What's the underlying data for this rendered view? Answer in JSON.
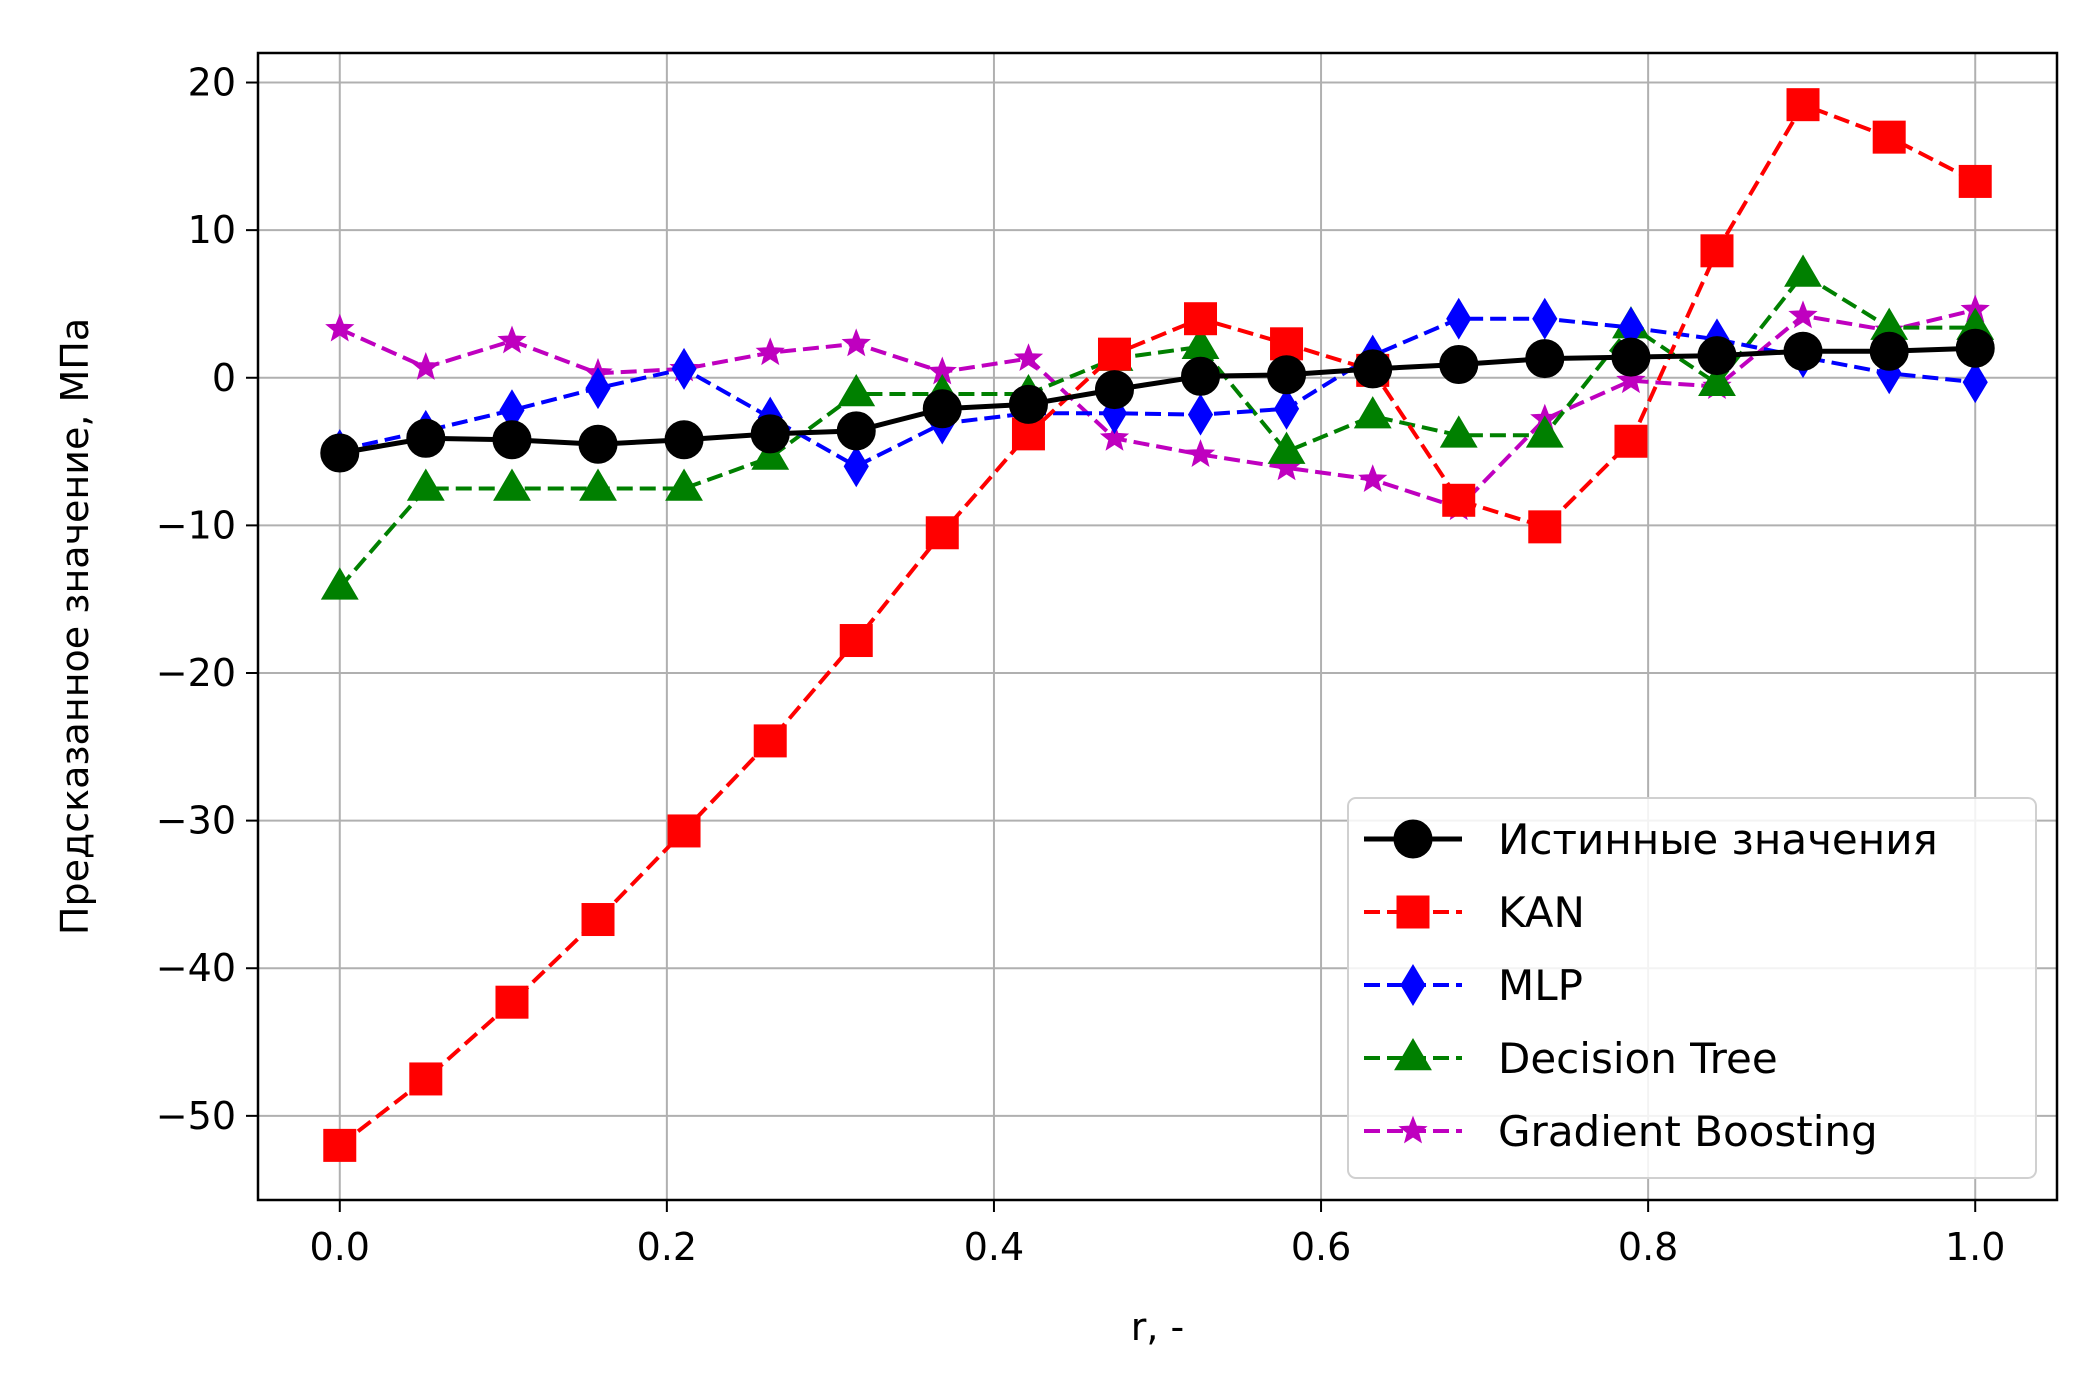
{
  "chart_data": {
    "type": "line",
    "xlabel": "r, -",
    "ylabel": "Предсказанное значение, МПа",
    "xlim": [
      -0.05,
      1.05
    ],
    "ylim": [
      -55.7,
      22
    ],
    "xticks": [
      0.0,
      0.2,
      0.4,
      0.6,
      0.8,
      1.0
    ],
    "xtick_labels": [
      "0.0",
      "0.2",
      "0.4",
      "0.6",
      "0.8",
      "1.0"
    ],
    "yticks": [
      -50,
      -40,
      -30,
      -20,
      -10,
      0,
      10,
      20
    ],
    "ytick_labels": [
      "−50",
      "−40",
      "−30",
      "−20",
      "−10",
      "0",
      "10",
      "20"
    ],
    "grid": true,
    "legend_position": "bottom-right",
    "x": [
      0.0,
      0.0526,
      0.1053,
      0.1579,
      0.2105,
      0.2632,
      0.3158,
      0.3684,
      0.4211,
      0.4737,
      0.5263,
      0.5789,
      0.6316,
      0.6842,
      0.7368,
      0.7895,
      0.8421,
      0.8947,
      0.9474,
      1.0
    ],
    "series": [
      {
        "name": "Истинные значения",
        "color": "#000000",
        "marker": "circle",
        "linestyle": "solid",
        "values": [
          -5.1,
          -4.1,
          -4.2,
          -4.5,
          -4.2,
          -3.8,
          -3.6,
          -2.1,
          -1.8,
          -0.8,
          0.1,
          0.2,
          0.6,
          0.9,
          1.3,
          1.4,
          1.5,
          1.8,
          1.8,
          2.0
        ]
      },
      {
        "name": "KAN",
        "color": "#ff0000",
        "marker": "square",
        "linestyle": "dashed",
        "values": [
          -52.0,
          -47.5,
          -42.3,
          -36.7,
          -30.7,
          -24.6,
          -17.8,
          -10.5,
          -3.8,
          1.6,
          4.0,
          2.3,
          0.5,
          -8.3,
          -10.1,
          -4.3,
          8.6,
          18.5,
          16.3,
          13.3
        ]
      },
      {
        "name": "MLP",
        "color": "#0000ff",
        "marker": "diamond",
        "linestyle": "dashed",
        "values": [
          -4.9,
          -3.6,
          -2.2,
          -0.7,
          0.6,
          -2.7,
          -6.0,
          -3.1,
          -2.4,
          -2.4,
          -2.5,
          -2.1,
          1.5,
          4.0,
          4.0,
          3.4,
          2.6,
          1.4,
          0.3,
          -0.3
        ]
      },
      {
        "name": "Decision Tree",
        "color": "#008000",
        "marker": "triangle",
        "linestyle": "dashed",
        "values": [
          -14.2,
          -7.5,
          -7.5,
          -7.5,
          -7.5,
          -5.4,
          -1.1,
          -1.1,
          -1.1,
          1.3,
          2.1,
          -5.0,
          -2.6,
          -3.9,
          -3.9,
          3.5,
          -0.4,
          7.0,
          3.4,
          3.4
        ]
      },
      {
        "name": "Gradient Boosting",
        "color": "#bf00bf",
        "marker": "star",
        "linestyle": "dashed",
        "values": [
          3.3,
          0.7,
          2.5,
          0.3,
          0.6,
          1.7,
          2.3,
          0.4,
          1.3,
          -4.1,
          -5.2,
          -6.1,
          -6.9,
          -8.8,
          -2.8,
          -0.2,
          -0.6,
          4.2,
          3.2,
          4.6
        ]
      }
    ]
  }
}
